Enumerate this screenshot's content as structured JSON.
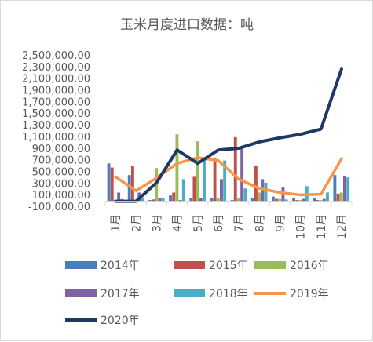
{
  "chart_data": {
    "type": "bar",
    "title": "玉米月度进口数据：吨",
    "xlabel": "",
    "ylabel": "",
    "categories": [
      "1月",
      "2月",
      "3月",
      "4月",
      "5月",
      "6月",
      "7月",
      "8月",
      "9月",
      "10月",
      "11月",
      "12月"
    ],
    "ylim": [
      -100000,
      2500000
    ],
    "yticks": [
      -100000,
      100000,
      300000,
      500000,
      700000,
      900000,
      1100000,
      1300000,
      1500000,
      1700000,
      1900000,
      2100000,
      2300000,
      2500000
    ],
    "ytick_labels": [
      "-100,000.00",
      "100,000.00",
      "300,000.00",
      "500,000.00",
      "700,000.00",
      "900,000.00",
      "1,100,000.00",
      "1,300,000.00",
      "1,500,000.00",
      "1,700,000.00",
      "1,900,000.00",
      "2,100,000.00",
      "2,300,000.00",
      "2,500,000.00"
    ],
    "grid": false,
    "legend_position": "bottom",
    "bar_series": [
      {
        "name": "2014年",
        "color": "#4a7ebb",
        "values": [
          650000,
          450000,
          20000,
          100000,
          50000,
          50000,
          20000,
          50000,
          80000,
          50000,
          50000,
          450000
        ]
      },
      {
        "name": "2015年",
        "color": "#c0504d",
        "values": [
          580000,
          600000,
          30000,
          150000,
          420000,
          750000,
          1100000,
          600000,
          40000,
          20000,
          20000,
          130000
        ]
      },
      {
        "name": "2016年",
        "color": "#9bbb59",
        "values": [
          20000,
          20000,
          570000,
          1150000,
          1030000,
          50000,
          50000,
          150000,
          40000,
          20000,
          20000,
          150000
        ]
      },
      {
        "name": "2017年",
        "color": "#8064a2",
        "values": [
          150000,
          150000,
          50000,
          20000,
          50000,
          380000,
          900000,
          380000,
          250000,
          40000,
          40000,
          430000
        ]
      },
      {
        "name": "2018年",
        "color": "#4bacc6",
        "values": [
          40000,
          50000,
          50000,
          380000,
          720000,
          700000,
          220000,
          320000,
          30000,
          260000,
          150000,
          410000
        ]
      }
    ],
    "line_series": [
      {
        "name": "2019年",
        "color": "#f79646",
        "values": [
          420000,
          180000,
          400000,
          650000,
          750000,
          700000,
          380000,
          220000,
          150000,
          110000,
          120000,
          730000
        ]
      },
      {
        "name": "2020年",
        "color": "#1f3864",
        "values": [
          0,
          0,
          320000,
          880000,
          650000,
          880000,
          910000,
          1020000,
          1090000,
          1150000,
          1240000,
          2270000
        ]
      }
    ]
  }
}
